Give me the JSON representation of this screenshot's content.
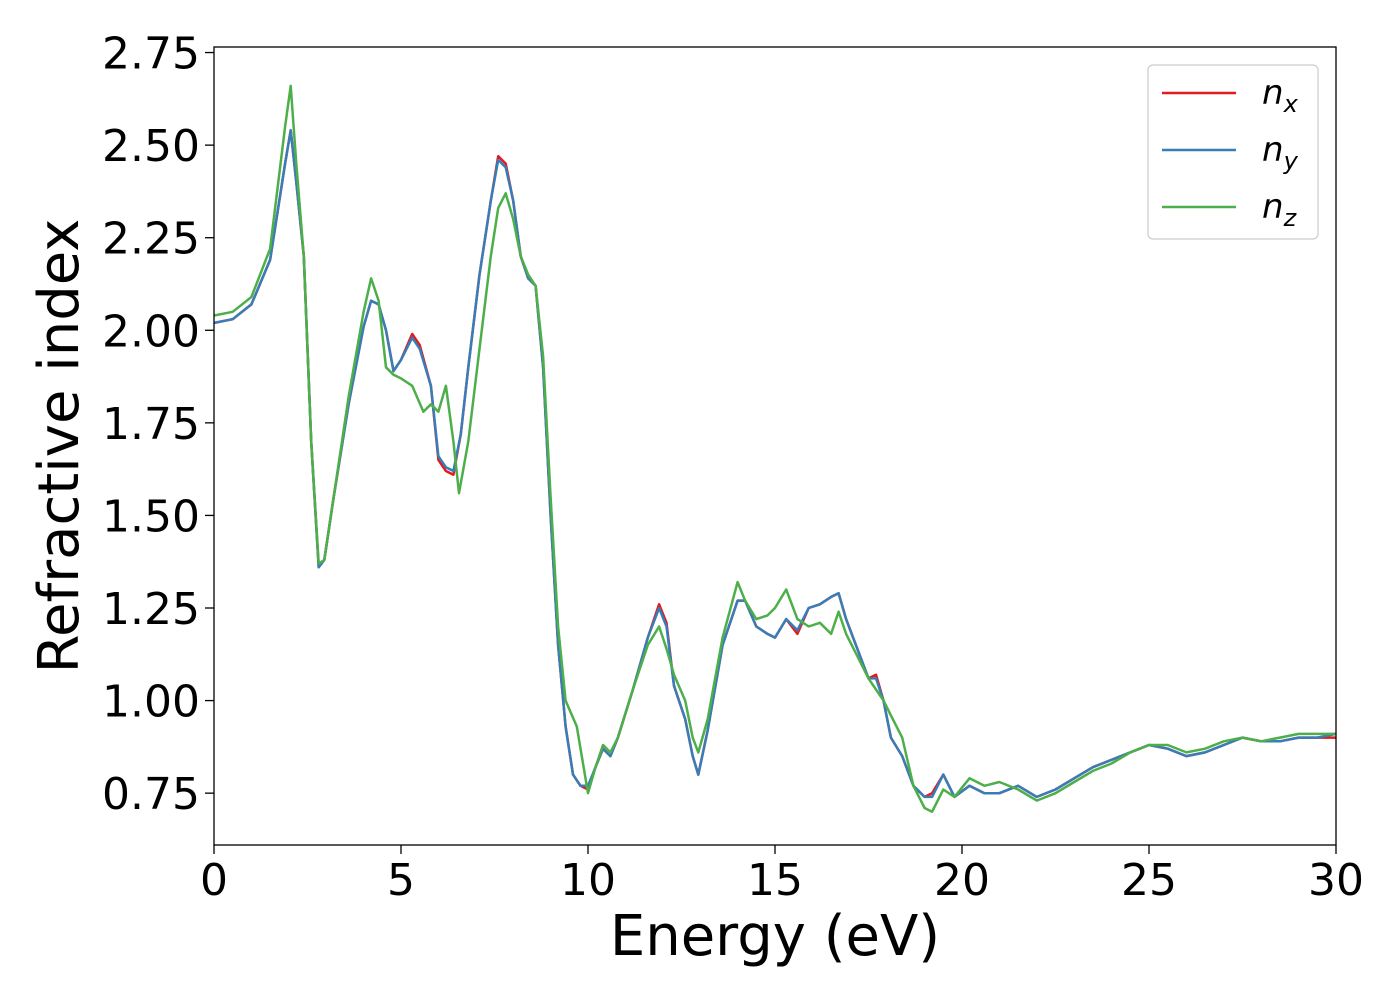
{
  "chart_data": {
    "type": "line",
    "title": "",
    "xlabel": "Energy (eV)",
    "ylabel": "Refractive index",
    "xlim": [
      0,
      30
    ],
    "ylim": [
      0.61,
      2.765
    ],
    "xticks": [
      0,
      5,
      10,
      15,
      20,
      25,
      30
    ],
    "xtick_labels": [
      "0",
      "5",
      "10",
      "15",
      "20",
      "25",
      "30"
    ],
    "yticks": [
      0.75,
      1.0,
      1.25,
      1.5,
      1.75,
      2.0,
      2.25,
      2.5,
      2.75
    ],
    "ytick_labels": [
      "0.75",
      "1.00",
      "1.25",
      "1.50",
      "1.75",
      "2.00",
      "2.25",
      "2.50",
      "2.75"
    ],
    "grid": false,
    "legend": {
      "position": "top-right"
    },
    "series": [
      {
        "name": "n",
        "subscript": "x",
        "color": "#e41a1c",
        "points": [
          [
            0,
            2.02
          ],
          [
            0.5,
            2.03
          ],
          [
            1.0,
            2.07
          ],
          [
            1.5,
            2.19
          ],
          [
            1.9,
            2.45
          ],
          [
            2.05,
            2.54
          ],
          [
            2.2,
            2.4
          ],
          [
            2.4,
            2.2
          ],
          [
            2.6,
            1.7
          ],
          [
            2.8,
            1.36
          ],
          [
            2.95,
            1.38
          ],
          [
            3.2,
            1.55
          ],
          [
            3.6,
            1.8
          ],
          [
            4.0,
            2.01
          ],
          [
            4.2,
            2.08
          ],
          [
            4.4,
            2.07
          ],
          [
            4.6,
            2.0
          ],
          [
            4.8,
            1.89
          ],
          [
            5.0,
            1.92
          ],
          [
            5.3,
            1.99
          ],
          [
            5.5,
            1.96
          ],
          [
            5.8,
            1.85
          ],
          [
            6.0,
            1.65
          ],
          [
            6.2,
            1.62
          ],
          [
            6.4,
            1.61
          ],
          [
            6.6,
            1.72
          ],
          [
            6.8,
            1.9
          ],
          [
            7.1,
            2.15
          ],
          [
            7.4,
            2.35
          ],
          [
            7.6,
            2.47
          ],
          [
            7.8,
            2.45
          ],
          [
            8.0,
            2.35
          ],
          [
            8.2,
            2.2
          ],
          [
            8.4,
            2.14
          ],
          [
            8.6,
            2.12
          ],
          [
            8.8,
            1.9
          ],
          [
            9.0,
            1.5
          ],
          [
            9.2,
            1.15
          ],
          [
            9.4,
            0.93
          ],
          [
            9.6,
            0.8
          ],
          [
            9.8,
            0.77
          ],
          [
            10.0,
            0.76
          ],
          [
            10.2,
            0.82
          ],
          [
            10.4,
            0.87
          ],
          [
            10.6,
            0.85
          ],
          [
            10.8,
            0.9
          ],
          [
            11.2,
            1.03
          ],
          [
            11.6,
            1.17
          ],
          [
            11.9,
            1.26
          ],
          [
            12.1,
            1.21
          ],
          [
            12.3,
            1.04
          ],
          [
            12.6,
            0.95
          ],
          [
            12.8,
            0.85
          ],
          [
            12.95,
            0.8
          ],
          [
            13.2,
            0.92
          ],
          [
            13.6,
            1.15
          ],
          [
            14.0,
            1.27
          ],
          [
            14.2,
            1.27
          ],
          [
            14.5,
            1.2
          ],
          [
            14.8,
            1.18
          ],
          [
            15.0,
            1.17
          ],
          [
            15.3,
            1.22
          ],
          [
            15.6,
            1.18
          ],
          [
            15.9,
            1.25
          ],
          [
            16.2,
            1.26
          ],
          [
            16.5,
            1.28
          ],
          [
            16.7,
            1.29
          ],
          [
            16.9,
            1.22
          ],
          [
            17.2,
            1.14
          ],
          [
            17.5,
            1.06
          ],
          [
            17.7,
            1.07
          ],
          [
            17.9,
            1.0
          ],
          [
            18.1,
            0.9
          ],
          [
            18.4,
            0.85
          ],
          [
            18.7,
            0.77
          ],
          [
            19.0,
            0.74
          ],
          [
            19.2,
            0.75
          ],
          [
            19.5,
            0.8
          ],
          [
            19.8,
            0.74
          ],
          [
            20.2,
            0.77
          ],
          [
            20.6,
            0.75
          ],
          [
            21.0,
            0.75
          ],
          [
            21.5,
            0.77
          ],
          [
            22.0,
            0.74
          ],
          [
            22.5,
            0.76
          ],
          [
            23.0,
            0.79
          ],
          [
            23.5,
            0.82
          ],
          [
            24.0,
            0.84
          ],
          [
            24.5,
            0.86
          ],
          [
            25.0,
            0.88
          ],
          [
            25.5,
            0.87
          ],
          [
            26.0,
            0.85
          ],
          [
            26.5,
            0.86
          ],
          [
            27.0,
            0.88
          ],
          [
            27.5,
            0.9
          ],
          [
            28.0,
            0.89
          ],
          [
            28.5,
            0.89
          ],
          [
            29.0,
            0.9
          ],
          [
            29.5,
            0.9
          ],
          [
            30.0,
            0.9
          ]
        ]
      },
      {
        "name": "n",
        "subscript": "y",
        "color": "#377eb8",
        "points": [
          [
            0,
            2.02
          ],
          [
            0.5,
            2.03
          ],
          [
            1.0,
            2.07
          ],
          [
            1.5,
            2.19
          ],
          [
            1.9,
            2.45
          ],
          [
            2.05,
            2.54
          ],
          [
            2.2,
            2.4
          ],
          [
            2.4,
            2.2
          ],
          [
            2.6,
            1.7
          ],
          [
            2.8,
            1.36
          ],
          [
            2.95,
            1.38
          ],
          [
            3.2,
            1.55
          ],
          [
            3.6,
            1.8
          ],
          [
            4.0,
            2.01
          ],
          [
            4.2,
            2.08
          ],
          [
            4.4,
            2.07
          ],
          [
            4.6,
            2.0
          ],
          [
            4.8,
            1.89
          ],
          [
            5.0,
            1.92
          ],
          [
            5.3,
            1.98
          ],
          [
            5.5,
            1.95
          ],
          [
            5.8,
            1.85
          ],
          [
            6.0,
            1.66
          ],
          [
            6.2,
            1.63
          ],
          [
            6.4,
            1.62
          ],
          [
            6.6,
            1.72
          ],
          [
            6.8,
            1.9
          ],
          [
            7.1,
            2.15
          ],
          [
            7.4,
            2.35
          ],
          [
            7.6,
            2.46
          ],
          [
            7.8,
            2.44
          ],
          [
            8.0,
            2.35
          ],
          [
            8.2,
            2.2
          ],
          [
            8.4,
            2.14
          ],
          [
            8.6,
            2.12
          ],
          [
            8.8,
            1.9
          ],
          [
            9.0,
            1.5
          ],
          [
            9.2,
            1.15
          ],
          [
            9.4,
            0.93
          ],
          [
            9.6,
            0.8
          ],
          [
            9.8,
            0.77
          ],
          [
            10.0,
            0.77
          ],
          [
            10.2,
            0.82
          ],
          [
            10.4,
            0.87
          ],
          [
            10.6,
            0.85
          ],
          [
            10.8,
            0.9
          ],
          [
            11.2,
            1.03
          ],
          [
            11.6,
            1.17
          ],
          [
            11.9,
            1.25
          ],
          [
            12.1,
            1.2
          ],
          [
            12.3,
            1.04
          ],
          [
            12.6,
            0.95
          ],
          [
            12.8,
            0.85
          ],
          [
            12.95,
            0.8
          ],
          [
            13.2,
            0.92
          ],
          [
            13.6,
            1.15
          ],
          [
            14.0,
            1.27
          ],
          [
            14.2,
            1.27
          ],
          [
            14.5,
            1.2
          ],
          [
            14.8,
            1.18
          ],
          [
            15.0,
            1.17
          ],
          [
            15.3,
            1.22
          ],
          [
            15.6,
            1.19
          ],
          [
            15.9,
            1.25
          ],
          [
            16.2,
            1.26
          ],
          [
            16.5,
            1.28
          ],
          [
            16.7,
            1.29
          ],
          [
            16.9,
            1.22
          ],
          [
            17.2,
            1.14
          ],
          [
            17.5,
            1.06
          ],
          [
            17.7,
            1.06
          ],
          [
            17.9,
            1.0
          ],
          [
            18.1,
            0.9
          ],
          [
            18.4,
            0.85
          ],
          [
            18.7,
            0.77
          ],
          [
            19.0,
            0.74
          ],
          [
            19.2,
            0.74
          ],
          [
            19.5,
            0.8
          ],
          [
            19.8,
            0.74
          ],
          [
            20.2,
            0.77
          ],
          [
            20.6,
            0.75
          ],
          [
            21.0,
            0.75
          ],
          [
            21.5,
            0.77
          ],
          [
            22.0,
            0.74
          ],
          [
            22.5,
            0.76
          ],
          [
            23.0,
            0.79
          ],
          [
            23.5,
            0.82
          ],
          [
            24.0,
            0.84
          ],
          [
            24.5,
            0.86
          ],
          [
            25.0,
            0.88
          ],
          [
            25.5,
            0.87
          ],
          [
            26.0,
            0.85
          ],
          [
            26.5,
            0.86
          ],
          [
            27.0,
            0.88
          ],
          [
            27.5,
            0.9
          ],
          [
            28.0,
            0.89
          ],
          [
            28.5,
            0.89
          ],
          [
            29.0,
            0.9
          ],
          [
            29.5,
            0.9
          ],
          [
            30.0,
            0.91
          ]
        ]
      },
      {
        "name": "n",
        "subscript": "z",
        "color": "#4daf4a",
        "points": [
          [
            0,
            2.04
          ],
          [
            0.5,
            2.05
          ],
          [
            1.0,
            2.09
          ],
          [
            1.5,
            2.22
          ],
          [
            1.9,
            2.55
          ],
          [
            2.05,
            2.66
          ],
          [
            2.2,
            2.45
          ],
          [
            2.4,
            2.2
          ],
          [
            2.6,
            1.7
          ],
          [
            2.8,
            1.37
          ],
          [
            2.95,
            1.38
          ],
          [
            3.2,
            1.55
          ],
          [
            3.6,
            1.82
          ],
          [
            4.0,
            2.05
          ],
          [
            4.2,
            2.14
          ],
          [
            4.4,
            2.08
          ],
          [
            4.6,
            1.9
          ],
          [
            4.8,
            1.88
          ],
          [
            5.0,
            1.87
          ],
          [
            5.3,
            1.85
          ],
          [
            5.6,
            1.78
          ],
          [
            5.8,
            1.8
          ],
          [
            6.0,
            1.78
          ],
          [
            6.2,
            1.85
          ],
          [
            6.4,
            1.7
          ],
          [
            6.55,
            1.56
          ],
          [
            6.8,
            1.7
          ],
          [
            7.1,
            1.95
          ],
          [
            7.4,
            2.2
          ],
          [
            7.6,
            2.33
          ],
          [
            7.8,
            2.37
          ],
          [
            8.0,
            2.3
          ],
          [
            8.2,
            2.2
          ],
          [
            8.4,
            2.15
          ],
          [
            8.6,
            2.12
          ],
          [
            8.8,
            1.93
          ],
          [
            9.0,
            1.55
          ],
          [
            9.2,
            1.2
          ],
          [
            9.4,
            1.0
          ],
          [
            9.7,
            0.93
          ],
          [
            10.0,
            0.75
          ],
          [
            10.2,
            0.82
          ],
          [
            10.4,
            0.88
          ],
          [
            10.6,
            0.86
          ],
          [
            10.8,
            0.9
          ],
          [
            11.2,
            1.03
          ],
          [
            11.6,
            1.15
          ],
          [
            11.9,
            1.2
          ],
          [
            12.1,
            1.14
          ],
          [
            12.3,
            1.07
          ],
          [
            12.6,
            1.0
          ],
          [
            12.8,
            0.9
          ],
          [
            12.95,
            0.86
          ],
          [
            13.2,
            0.95
          ],
          [
            13.6,
            1.17
          ],
          [
            14.0,
            1.32
          ],
          [
            14.2,
            1.27
          ],
          [
            14.5,
            1.22
          ],
          [
            14.8,
            1.23
          ],
          [
            15.0,
            1.25
          ],
          [
            15.3,
            1.3
          ],
          [
            15.6,
            1.22
          ],
          [
            15.9,
            1.2
          ],
          [
            16.2,
            1.21
          ],
          [
            16.5,
            1.18
          ],
          [
            16.7,
            1.24
          ],
          [
            16.9,
            1.18
          ],
          [
            17.2,
            1.12
          ],
          [
            17.5,
            1.06
          ],
          [
            17.7,
            1.03
          ],
          [
            17.9,
            1.0
          ],
          [
            18.1,
            0.96
          ],
          [
            18.4,
            0.9
          ],
          [
            18.7,
            0.77
          ],
          [
            19.0,
            0.71
          ],
          [
            19.2,
            0.7
          ],
          [
            19.5,
            0.76
          ],
          [
            19.8,
            0.74
          ],
          [
            20.2,
            0.79
          ],
          [
            20.6,
            0.77
          ],
          [
            21.0,
            0.78
          ],
          [
            21.5,
            0.76
          ],
          [
            22.0,
            0.73
          ],
          [
            22.5,
            0.75
          ],
          [
            23.0,
            0.78
          ],
          [
            23.5,
            0.81
          ],
          [
            24.0,
            0.83
          ],
          [
            24.5,
            0.86
          ],
          [
            25.0,
            0.88
          ],
          [
            25.5,
            0.88
          ],
          [
            26.0,
            0.86
          ],
          [
            26.5,
            0.87
          ],
          [
            27.0,
            0.89
          ],
          [
            27.5,
            0.9
          ],
          [
            28.0,
            0.89
          ],
          [
            28.5,
            0.9
          ],
          [
            29.0,
            0.91
          ],
          [
            29.5,
            0.91
          ],
          [
            30.0,
            0.91
          ]
        ]
      }
    ]
  }
}
